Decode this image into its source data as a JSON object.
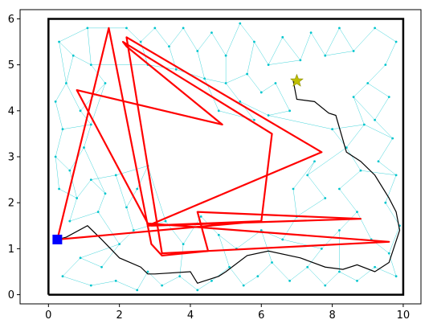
{
  "chart_data": {
    "type": "line",
    "title": "",
    "xlabel": "",
    "ylabel": "",
    "xlim": [
      -0.8,
      10.5
    ],
    "ylim": [
      -0.2,
      6.2
    ],
    "x_ticks": [
      0,
      2,
      4,
      6,
      8,
      10
    ],
    "y_ticks": [
      0,
      1,
      2,
      3,
      4,
      5,
      6
    ],
    "grid": false,
    "legend": "none",
    "boundary": {
      "x": [
        0,
        10,
        10,
        0,
        0
      ],
      "y": [
        0,
        0,
        6,
        6,
        0
      ],
      "color": "#000000"
    },
    "start": {
      "x": 0.25,
      "y": 1.2,
      "color": "#0000ff",
      "marker": "square"
    },
    "goal": {
      "x": 7.0,
      "y": 4.65,
      "color": "#bfbf00",
      "marker": "star"
    },
    "roadmap_color": "#00c5cd",
    "roadmap_nodes": [
      [
        0.3,
        5.5
      ],
      [
        0.7,
        5.2
      ],
      [
        1.1,
        5.8
      ],
      [
        1.2,
        5.0
      ],
      [
        1.6,
        4.6
      ],
      [
        0.5,
        4.6
      ],
      [
        0.2,
        4.2
      ],
      [
        0.9,
        4.0
      ],
      [
        0.4,
        3.6
      ],
      [
        1.2,
        3.7
      ],
      [
        0.2,
        3.0
      ],
      [
        0.6,
        2.7
      ],
      [
        1.0,
        3.2
      ],
      [
        0.3,
        2.3
      ],
      [
        0.8,
        2.1
      ],
      [
        1.2,
        2.5
      ],
      [
        1.6,
        2.2
      ],
      [
        1.4,
        1.8
      ],
      [
        0.6,
        1.6
      ],
      [
        1.9,
        2.6
      ],
      [
        2.2,
        1.9
      ],
      [
        2.5,
        2.3
      ],
      [
        2.8,
        2.8
      ],
      [
        2.4,
        1.4
      ],
      [
        2.0,
        1.1
      ],
      [
        1.5,
        0.6
      ],
      [
        0.9,
        0.8
      ],
      [
        0.4,
        0.4
      ],
      [
        1.2,
        0.2
      ],
      [
        1.9,
        0.3
      ],
      [
        2.5,
        0.1
      ],
      [
        2.8,
        0.5
      ],
      [
        3.2,
        0.2
      ],
      [
        3.7,
        0.4
      ],
      [
        4.2,
        0.1
      ],
      [
        4.6,
        0.3
      ],
      [
        5.1,
        0.6
      ],
      [
        5.5,
        0.2
      ],
      [
        5.9,
        0.4
      ],
      [
        6.3,
        0.7
      ],
      [
        6.8,
        0.3
      ],
      [
        7.3,
        0.6
      ],
      [
        7.8,
        0.2
      ],
      [
        8.2,
        0.5
      ],
      [
        8.7,
        0.3
      ],
      [
        9.2,
        0.6
      ],
      [
        9.8,
        0.4
      ],
      [
        9.6,
        0.9
      ],
      [
        9.9,
        1.5
      ],
      [
        9.5,
        2.0
      ],
      [
        9.8,
        2.6
      ],
      [
        9.3,
        2.9
      ],
      [
        9.7,
        3.4
      ],
      [
        9.2,
        3.8
      ],
      [
        9.6,
        4.3
      ],
      [
        9.0,
        4.6
      ],
      [
        9.5,
        5.0
      ],
      [
        9.8,
        5.5
      ],
      [
        9.2,
        5.8
      ],
      [
        8.6,
        5.3
      ],
      [
        8.2,
        5.8
      ],
      [
        7.8,
        5.2
      ],
      [
        7.4,
        5.7
      ],
      [
        7.1,
        5.1
      ],
      [
        6.6,
        5.6
      ],
      [
        6.2,
        5.0
      ],
      [
        5.8,
        5.5
      ],
      [
        5.4,
        5.9
      ],
      [
        5.0,
        5.2
      ],
      [
        4.6,
        5.7
      ],
      [
        4.2,
        5.3
      ],
      [
        3.8,
        5.8
      ],
      [
        3.4,
        5.4
      ],
      [
        3.0,
        5.8
      ],
      [
        2.6,
        5.5
      ],
      [
        2.2,
        5.8
      ],
      [
        2.8,
        5.0
      ],
      [
        3.6,
        4.9
      ],
      [
        4.4,
        4.7
      ],
      [
        5.0,
        4.6
      ],
      [
        5.6,
        4.8
      ],
      [
        6.0,
        4.4
      ],
      [
        6.4,
        4.6
      ],
      [
        5.4,
        4.2
      ],
      [
        6.2,
        3.9
      ],
      [
        6.8,
        4.0
      ],
      [
        5.8,
        3.8
      ],
      [
        4.8,
        4.0
      ],
      [
        8.6,
        4.3
      ],
      [
        8.9,
        3.7
      ],
      [
        8.4,
        3.2
      ],
      [
        8.8,
        2.7
      ],
      [
        8.2,
        2.3
      ],
      [
        8.7,
        1.8
      ],
      [
        8.2,
        1.4
      ],
      [
        7.7,
        1.0
      ],
      [
        7.3,
        2.6
      ],
      [
        7.8,
        2.1
      ],
      [
        7.0,
        1.7
      ],
      [
        7.5,
        2.9
      ],
      [
        6.9,
        2.3
      ],
      [
        6.6,
        1.2
      ],
      [
        8.0,
        3.6
      ],
      [
        9.1,
        1.2
      ],
      [
        3.8,
        1.1
      ],
      [
        4.3,
        1.7
      ],
      [
        4.8,
        1.3
      ],
      [
        5.3,
        1.0
      ],
      [
        3.3,
        1.6
      ],
      [
        6.0,
        1.4
      ]
    ],
    "roadmap_edges": [
      [
        0,
        1
      ],
      [
        0,
        2
      ],
      [
        1,
        3
      ],
      [
        2,
        3
      ],
      [
        3,
        4
      ],
      [
        1,
        5
      ],
      [
        5,
        6
      ],
      [
        5,
        7
      ],
      [
        6,
        8
      ],
      [
        7,
        9
      ],
      [
        8,
        9
      ],
      [
        8,
        10
      ],
      [
        10,
        11
      ],
      [
        11,
        12
      ],
      [
        9,
        12
      ],
      [
        10,
        13
      ],
      [
        13,
        14
      ],
      [
        11,
        14
      ],
      [
        14,
        15
      ],
      [
        15,
        16
      ],
      [
        16,
        17
      ],
      [
        14,
        18
      ],
      [
        18,
        17
      ],
      [
        15,
        19
      ],
      [
        19,
        20
      ],
      [
        20,
        21
      ],
      [
        21,
        22
      ],
      [
        19,
        22
      ],
      [
        20,
        23
      ],
      [
        23,
        24
      ],
      [
        24,
        25
      ],
      [
        25,
        26
      ],
      [
        26,
        27
      ],
      [
        27,
        28
      ],
      [
        28,
        29
      ],
      [
        29,
        30
      ],
      [
        30,
        31
      ],
      [
        31,
        32
      ],
      [
        32,
        33
      ],
      [
        33,
        34
      ],
      [
        34,
        35
      ],
      [
        35,
        36
      ],
      [
        36,
        37
      ],
      [
        37,
        38
      ],
      [
        38,
        39
      ],
      [
        39,
        40
      ],
      [
        40,
        41
      ],
      [
        41,
        42
      ],
      [
        42,
        43
      ],
      [
        43,
        44
      ],
      [
        44,
        45
      ],
      [
        45,
        46
      ],
      [
        46,
        47
      ],
      [
        47,
        48
      ],
      [
        48,
        49
      ],
      [
        49,
        50
      ],
      [
        50,
        51
      ],
      [
        51,
        52
      ],
      [
        52,
        53
      ],
      [
        53,
        54
      ],
      [
        54,
        55
      ],
      [
        55,
        56
      ],
      [
        56,
        57
      ],
      [
        57,
        58
      ],
      [
        58,
        59
      ],
      [
        59,
        60
      ],
      [
        60,
        61
      ],
      [
        61,
        62
      ],
      [
        62,
        63
      ],
      [
        63,
        64
      ],
      [
        64,
        65
      ],
      [
        65,
        66
      ],
      [
        66,
        67
      ],
      [
        67,
        68
      ],
      [
        68,
        69
      ],
      [
        69,
        70
      ],
      [
        70,
        71
      ],
      [
        71,
        72
      ],
      [
        72,
        73
      ],
      [
        73,
        74
      ],
      [
        74,
        75
      ],
      [
        74,
        76
      ],
      [
        76,
        77
      ],
      [
        77,
        78
      ],
      [
        78,
        79
      ],
      [
        79,
        80
      ],
      [
        80,
        81
      ],
      [
        81,
        82
      ],
      [
        79,
        83
      ],
      [
        83,
        84
      ],
      [
        84,
        85
      ],
      [
        83,
        86
      ],
      [
        86,
        87
      ],
      [
        87,
        78
      ],
      [
        66,
        80
      ],
      [
        68,
        79
      ],
      [
        70,
        78
      ],
      [
        72,
        77
      ],
      [
        3,
        76
      ],
      [
        4,
        7
      ],
      [
        2,
        75
      ],
      [
        55,
        88
      ],
      [
        88,
        89
      ],
      [
        89,
        90
      ],
      [
        90,
        91
      ],
      [
        91,
        92
      ],
      [
        92,
        93
      ],
      [
        93,
        94
      ],
      [
        94,
        95
      ],
      [
        90,
        96
      ],
      [
        96,
        97
      ],
      [
        97,
        98
      ],
      [
        96,
        99
      ],
      [
        99,
        100
      ],
      [
        100,
        98
      ],
      [
        98,
        101
      ],
      [
        95,
        41
      ],
      [
        94,
        43
      ],
      [
        93,
        103
      ],
      [
        103,
        47
      ],
      [
        91,
        50
      ],
      [
        89,
        52
      ],
      [
        88,
        53
      ],
      [
        102,
        90
      ],
      [
        102,
        89
      ],
      [
        63,
        65
      ],
      [
        61,
        59
      ],
      [
        104,
        105
      ],
      [
        105,
        106
      ],
      [
        106,
        107
      ],
      [
        104,
        108
      ],
      [
        108,
        23
      ],
      [
        104,
        33
      ],
      [
        106,
        36
      ],
      [
        107,
        109
      ],
      [
        109,
        39
      ],
      [
        109,
        101
      ],
      [
        101,
        95
      ],
      [
        24,
        26
      ],
      [
        12,
        16
      ],
      [
        17,
        24
      ],
      [
        22,
        108
      ],
      [
        0,
        5
      ],
      [
        9,
        4
      ],
      [
        82,
        85
      ],
      [
        84,
        102
      ]
    ],
    "path": {
      "color": "#000000",
      "x": [
        0.25,
        0.5,
        1.1,
        1.5,
        2.0,
        2.6,
        2.8,
        3.0,
        4.0,
        4.2,
        4.8,
        5.0,
        5.6,
        6.2,
        7.1,
        7.8,
        8.3,
        8.7,
        9.2,
        9.6,
        9.9,
        9.8,
        9.6,
        9.2,
        8.8,
        8.4,
        8.1,
        7.9,
        7.5,
        7.0,
        6.9
      ],
      "y": [
        1.2,
        1.25,
        1.5,
        1.2,
        0.8,
        0.6,
        0.45,
        0.45,
        0.5,
        0.25,
        0.4,
        0.5,
        0.85,
        0.95,
        0.8,
        0.6,
        0.55,
        0.65,
        0.5,
        0.7,
        1.4,
        1.8,
        2.1,
        2.6,
        2.9,
        3.1,
        3.9,
        3.95,
        4.2,
        4.25,
        4.65
      ]
    },
    "series": [
      {
        "color": "#ff0000",
        "x": [
          0.25,
          1.7,
          2.9,
          3.2,
          4.5,
          4.2,
          8.8,
          2.9,
          6.0,
          6.3,
          2.1,
          2.2,
          4.9,
          0.8,
          2.8,
          9.6,
          3.2,
          2.2,
          7.7,
          2.8,
          6.0,
          0.25
        ],
        "y": [
          1.2,
          5.8,
          1.1,
          0.85,
          0.95,
          1.8,
          1.65,
          1.5,
          1.6,
          3.5,
          5.5,
          5.4,
          3.7,
          4.45,
          1.55,
          1.15,
          0.9,
          5.6,
          3.1,
          1.5,
          1.6,
          1.2
        ]
      }
    ]
  }
}
